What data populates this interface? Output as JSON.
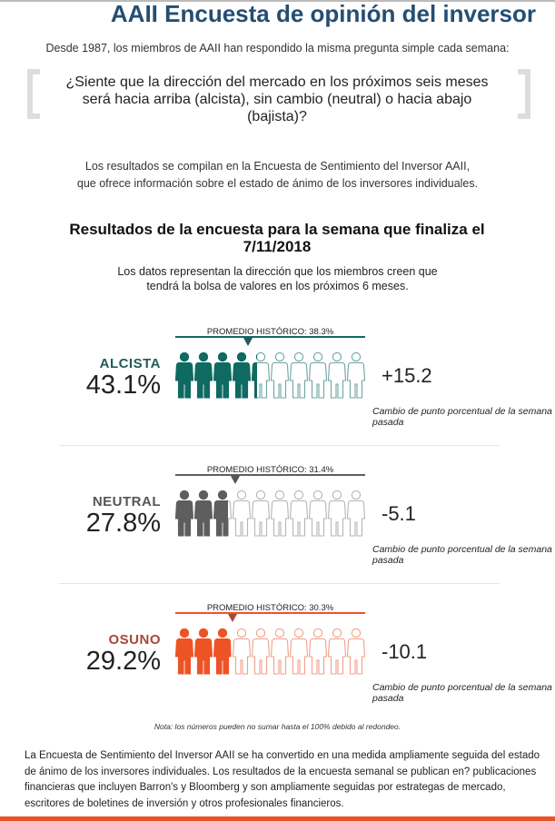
{
  "header": {
    "title": "AAII Encuesta de opinión del inversor",
    "intro": "Desde 1987, los miembros de AAII han respondido la misma pregunta simple cada semana:",
    "question": "¿Siente que la dirección del mercado en los próximos seis meses será hacia arriba (alcista), sin cambio (neutral) o hacia abajo (bajista)?",
    "compiled_line1": "Los resultados se compilan en la Encuesta de Sentimiento del Inversor AAII,",
    "compiled_line2": "que ofrece información sobre el estado de ánimo de los inversores individuales."
  },
  "results": {
    "title": "Resultados de la encuesta para la semana que finaliza el 7/11/2018",
    "subtitle_line1": "Los datos representan la dirección que los miembros creen que",
    "subtitle_line2": "tendrá la bolsa de valores en los próximos 6 meses."
  },
  "categories": [
    {
      "label": "ALCISTA",
      "pct_text": "43.1%",
      "pct": 43.1,
      "avg_text": "PROMEDIO HISTÓRICO: 38.3%",
      "avg": 38.3,
      "change": "+15.2",
      "caption": "Cambio de punto porcentual de la semana pasada",
      "color": "#0e6a63",
      "label_color": "#1f5c57",
      "outline": "#6fa5a0"
    },
    {
      "label": "NEUTRAL",
      "pct_text": "27.8%",
      "pct": 27.8,
      "avg_text": "PROMEDIO HISTÓRICO: 31.4%",
      "avg": 31.4,
      "change": "-5.1",
      "caption": "Cambio de punto porcentual de la semana pasada",
      "color": "#5e5e5e",
      "label_color": "#555555",
      "outline": "#b5b5b5"
    },
    {
      "label": "OSUNO",
      "pct_text": "29.2%",
      "pct": 29.2,
      "avg_text": "PROMEDIO HISTÓRICO: 30.3%",
      "avg": 30.3,
      "change": "-10.1",
      "caption": "Cambio de punto porcentual de la semana pasada",
      "color": "#ee5325",
      "label_color": "#a9473a",
      "outline": "#f2a08a"
    }
  ],
  "note": "Nota: los números pueden no sumar hasta el 100% debido al redondeo.",
  "about": "La Encuesta de Sentimiento del Inversor AAII se ha convertido en una medida ampliamente seguida del estado de ánimo de los inversores individuales. Los resultados de la encuesta semanal se publican en? publicaciones financieras que incluyen Barron's y Bloomberg y son ampliamente seguidas por estrategas de mercado, escritores de boletines de inversión y otros profesionales financieros."
}
